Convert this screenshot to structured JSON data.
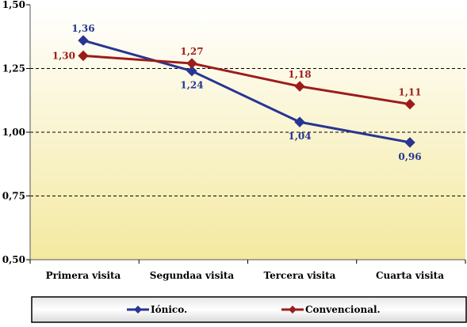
{
  "chart_data": {
    "type": "line",
    "categories": [
      "Primera visita",
      "Segundaa visita",
      "Tercera visita",
      "Cuarta visita"
    ],
    "series": [
      {
        "name": "Iónico.",
        "values": [
          1.36,
          1.24,
          1.04,
          0.96
        ],
        "labels": [
          "1,36",
          "1,24",
          "1,04",
          "0,96"
        ],
        "color": "#283593"
      },
      {
        "name": "Convencional.",
        "values": [
          1.3,
          1.27,
          1.18,
          1.11
        ],
        "labels": [
          "1,30",
          "1,27",
          "1,18",
          "1,11"
        ],
        "color": "#9c1c1c"
      }
    ],
    "yticks": [
      "0,50",
      "0,75",
      "1,00",
      "1,25",
      "1,50"
    ],
    "ylim": [
      0.5,
      1.5
    ],
    "grid": "horizontal-dashed",
    "legend_position": "bottom",
    "background_gradient": [
      "#ffffff",
      "#f4e9a0"
    ]
  }
}
